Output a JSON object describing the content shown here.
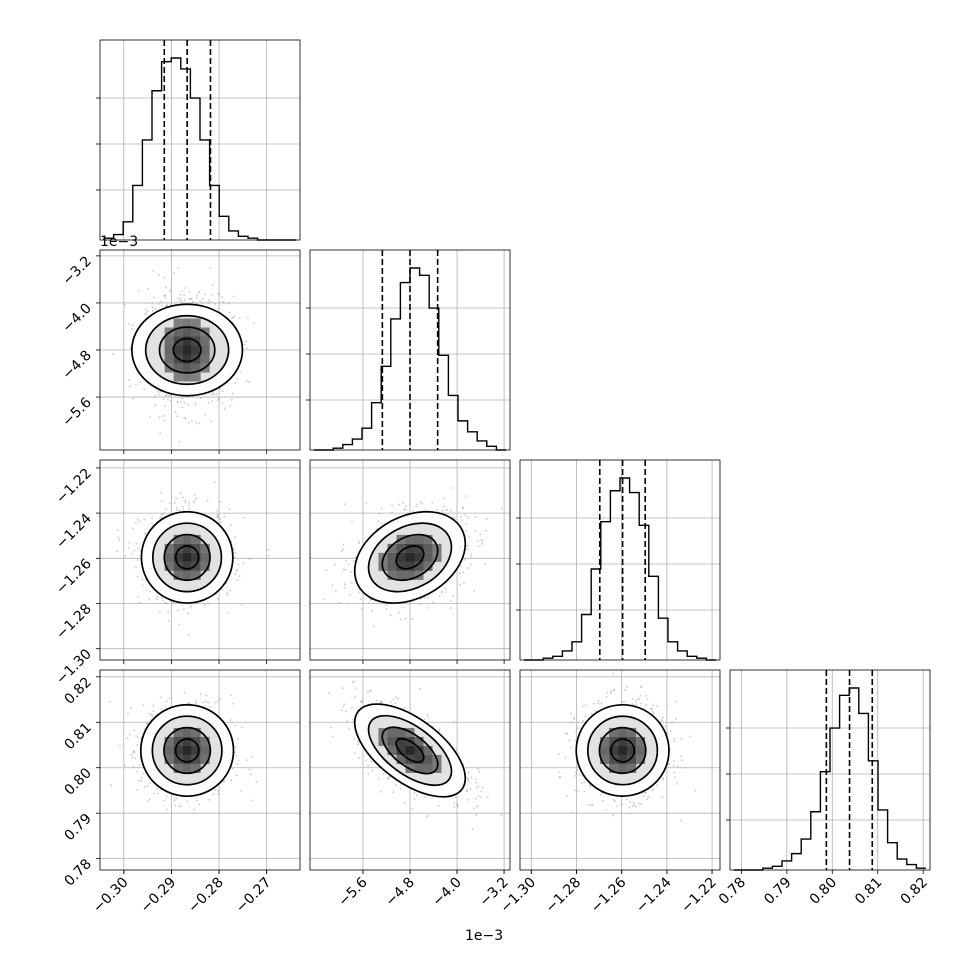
{
  "chart_data": {
    "type": "corner",
    "parameters": [
      {
        "range": [
          -0.305,
          -0.263
        ],
        "ticks": [
          -0.3,
          -0.29,
          -0.28,
          -0.27
        ],
        "tick_labels": [
          "−0.30",
          "−0.29",
          "−0.28",
          "−0.27"
        ],
        "offset_text": "",
        "mean": -0.2867,
        "quantiles": [
          -0.2915,
          -0.2867,
          -0.2818
        ],
        "sigma": 0.0048
      },
      {
        "range": [
          -0.0065,
          -0.0031
        ],
        "ticks": [
          -0.0056,
          -0.0048,
          -0.004,
          -0.0032
        ],
        "tick_labels": [
          "−5.6",
          "−4.8",
          "−4.0",
          "−3.2"
        ],
        "offset_text": "1e−3",
        "mean": -0.0048,
        "quantiles": [
          -0.00527,
          -0.0048,
          -0.00433
        ],
        "sigma": 0.00047
      },
      {
        "range": [
          -1.305,
          -1.2165
        ],
        "ticks": [
          -1.3,
          -1.28,
          -1.26,
          -1.24,
          -1.22
        ],
        "tick_labels": [
          "−1.30",
          "−1.28",
          "−1.26",
          "−1.24",
          "−1.22"
        ],
        "offset_text": "",
        "mean": -1.2596,
        "quantiles": [
          -1.2697,
          -1.2596,
          -1.2496
        ],
        "sigma": 0.0101
      },
      {
        "range": [
          0.7775,
          0.8215
        ],
        "ticks": [
          0.78,
          0.79,
          0.8,
          0.81,
          0.82
        ],
        "tick_labels": [
          "0.78",
          "0.79",
          "0.80",
          "0.81",
          "0.82"
        ],
        "offset_text": "",
        "mean": 0.8038,
        "quantiles": [
          0.7987,
          0.8038,
          0.8088
        ],
        "sigma": 0.0051
      }
    ],
    "correlations": [
      [
        1.0,
        0.0,
        0.0,
        0.0
      ],
      [
        0.0,
        1.0,
        0.3,
        -0.6
      ],
      [
        0.0,
        0.3,
        1.0,
        0.0
      ],
      [
        0.0,
        -0.6,
        0.0,
        1.0
      ]
    ],
    "histograms": [
      [
        0.01,
        0.03,
        0.1,
        0.3,
        0.55,
        0.82,
        0.98,
        1.0,
        0.94,
        0.78,
        0.55,
        0.3,
        0.13,
        0.05,
        0.02,
        0.01,
        0.0,
        0.0,
        0.0,
        0.0
      ],
      [
        0.0,
        0.0,
        0.01,
        0.03,
        0.06,
        0.12,
        0.26,
        0.46,
        0.72,
        0.92,
        1.0,
        0.96,
        0.78,
        0.52,
        0.3,
        0.16,
        0.1,
        0.05,
        0.02,
        0.0
      ],
      [
        0.0,
        0.0,
        0.01,
        0.02,
        0.05,
        0.1,
        0.25,
        0.5,
        0.76,
        0.93,
        1.0,
        0.92,
        0.74,
        0.46,
        0.23,
        0.1,
        0.05,
        0.02,
        0.01,
        0.0
      ],
      [
        0.0,
        0.0,
        0.0,
        0.01,
        0.02,
        0.05,
        0.09,
        0.17,
        0.32,
        0.54,
        0.78,
        0.96,
        1.0,
        0.86,
        0.6,
        0.33,
        0.15,
        0.06,
        0.03,
        0.01
      ]
    ],
    "contour_levels_sigma": [
      0.5,
      1.0,
      1.5,
      2.0
    ],
    "marker_color": "#000000",
    "grid": true
  }
}
